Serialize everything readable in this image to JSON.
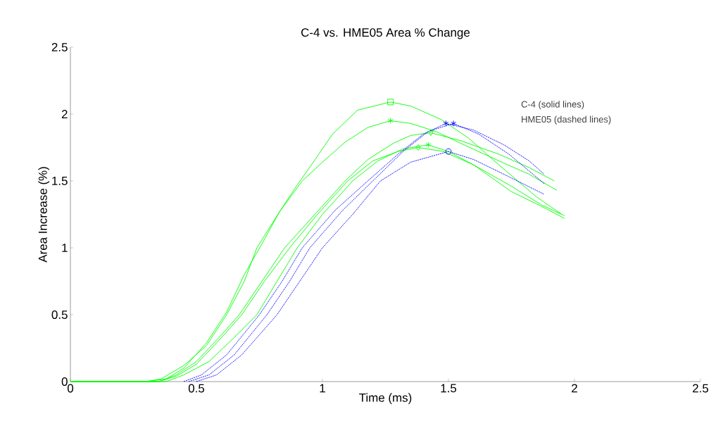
{
  "chart_data": {
    "type": "line",
    "title": "C-4 vs. HME05 Area % Change",
    "xlabel": "Time (ms)",
    "ylabel": "Area Increase (%)",
    "xlim": [
      0,
      2.5
    ],
    "ylim": [
      0,
      2.5
    ],
    "xticks": [
      0,
      0.5,
      1,
      1.5,
      2,
      2.5
    ],
    "yticks": [
      0,
      0.5,
      1,
      1.5,
      2,
      2.5
    ],
    "annotations": [
      "C-4 (solid lines)",
      "HME05 (dashed lines)"
    ],
    "series": [
      {
        "color": "#00ff00",
        "line_style": "solid",
        "x": [
          0,
          0.3,
          0.38,
          0.45,
          0.54,
          0.62,
          0.69,
          0.76,
          0.83,
          0.9,
          0.96,
          1.04,
          1.14,
          1.27,
          1.35,
          1.47,
          1.58,
          1.7,
          1.85,
          1.95
        ],
        "values": [
          0,
          0,
          0.02,
          0.1,
          0.29,
          0.52,
          0.8,
          1.03,
          1.27,
          1.47,
          1.63,
          1.85,
          2.03,
          2.09,
          2.06,
          1.96,
          1.82,
          1.62,
          1.38,
          1.25
        ]
      },
      {
        "color": "#00ff00",
        "line_style": "solid",
        "x": [
          0,
          0.3,
          0.36,
          0.45,
          0.54,
          0.62,
          0.69,
          0.74,
          0.83,
          0.92,
          1.0,
          1.09,
          1.18,
          1.27,
          1.35,
          1.45,
          1.55,
          1.7,
          1.82,
          1.93
        ],
        "values": [
          0,
          0,
          0.02,
          0.12,
          0.27,
          0.5,
          0.75,
          1.0,
          1.27,
          1.5,
          1.64,
          1.79,
          1.9,
          1.95,
          1.93,
          1.87,
          1.78,
          1.65,
          1.55,
          1.43
        ]
      },
      {
        "color": "#00ff00",
        "line_style": "solid",
        "x": [
          0,
          0.35,
          0.42,
          0.5,
          0.6,
          0.67,
          0.76,
          0.85,
          0.97,
          1.09,
          1.18,
          1.28,
          1.35,
          1.43,
          1.55,
          1.7,
          1.82,
          1.92
        ],
        "values": [
          0,
          0,
          0.05,
          0.15,
          0.35,
          0.5,
          0.75,
          1.0,
          1.25,
          1.5,
          1.66,
          1.78,
          1.84,
          1.86,
          1.8,
          1.7,
          1.6,
          1.5
        ]
      },
      {
        "color": "#00ff00",
        "line_style": "solid",
        "x": [
          0,
          0.35,
          0.42,
          0.5,
          0.6,
          0.68,
          0.77,
          0.87,
          0.98,
          1.1,
          1.2,
          1.3,
          1.38,
          1.48,
          1.6,
          1.75,
          1.87,
          1.96
        ],
        "values": [
          0,
          0,
          0.04,
          0.13,
          0.33,
          0.5,
          0.75,
          1.0,
          1.25,
          1.5,
          1.65,
          1.72,
          1.75,
          1.72,
          1.62,
          1.46,
          1.32,
          1.24
        ]
      },
      {
        "color": "#00ff00",
        "line_style": "solid",
        "x": [
          0,
          0.38,
          0.45,
          0.55,
          0.65,
          0.74,
          0.82,
          0.9,
          1.0,
          1.12,
          1.22,
          1.32,
          1.42,
          1.5,
          1.6,
          1.75,
          1.88,
          1.96
        ],
        "values": [
          0,
          0,
          0.05,
          0.15,
          0.33,
          0.5,
          0.75,
          1.0,
          1.25,
          1.5,
          1.65,
          1.74,
          1.77,
          1.72,
          1.62,
          1.42,
          1.3,
          1.22
        ]
      },
      {
        "color": "#0000ff",
        "line_style": "dotted",
        "x": [
          0.45,
          0.52,
          0.62,
          0.75,
          0.84,
          0.92,
          1.05,
          1.18,
          1.3,
          1.4,
          1.49,
          1.6,
          1.72,
          1.82,
          1.88
        ],
        "values": [
          0,
          0.05,
          0.2,
          0.5,
          0.75,
          1.0,
          1.28,
          1.5,
          1.7,
          1.85,
          1.93,
          1.88,
          1.77,
          1.65,
          1.55
        ]
      },
      {
        "color": "#0000ff",
        "line_style": "dotted",
        "x": [
          0.47,
          0.55,
          0.65,
          0.78,
          0.87,
          0.95,
          1.08,
          1.2,
          1.32,
          1.42,
          1.52,
          1.62,
          1.74,
          1.88
        ],
        "values": [
          0,
          0.05,
          0.2,
          0.5,
          0.75,
          1.0,
          1.28,
          1.5,
          1.72,
          1.87,
          1.93,
          1.85,
          1.7,
          1.48
        ]
      },
      {
        "color": "#0000ff",
        "line_style": "dotted",
        "x": [
          0.5,
          0.58,
          0.68,
          0.82,
          0.91,
          1.0,
          1.12,
          1.23,
          1.35,
          1.5,
          1.6,
          1.72,
          1.88
        ],
        "values": [
          0,
          0.05,
          0.2,
          0.5,
          0.75,
          1.0,
          1.25,
          1.5,
          1.64,
          1.72,
          1.66,
          1.55,
          1.4
        ]
      },
      {
        "type": "scatter",
        "color": "#00ff00",
        "marker": "square",
        "x": [
          1.27
        ],
        "values": [
          2.09
        ]
      },
      {
        "type": "scatter",
        "color": "#00ff00",
        "marker": "cross",
        "x": [
          1.27
        ],
        "values": [
          1.95
        ]
      },
      {
        "type": "scatter",
        "color": "#00ff00",
        "marker": "triangle",
        "x": [
          1.43
        ],
        "values": [
          1.86
        ]
      },
      {
        "type": "scatter",
        "color": "#00ff00",
        "marker": "diamond",
        "x": [
          1.38
        ],
        "values": [
          1.75
        ]
      },
      {
        "type": "scatter",
        "color": "#00ff00",
        "marker": "cross",
        "x": [
          1.42
        ],
        "values": [
          1.77
        ]
      },
      {
        "type": "scatter",
        "color": "#0000ff",
        "marker": "cross",
        "x": [
          1.49
        ],
        "values": [
          1.93
        ]
      },
      {
        "type": "scatter",
        "color": "#0000ff",
        "marker": "cross",
        "x": [
          1.52
        ],
        "values": [
          1.93
        ]
      },
      {
        "type": "scatter",
        "color": "#0000ff",
        "marker": "circle",
        "x": [
          1.5
        ],
        "values": [
          1.72
        ]
      }
    ]
  }
}
